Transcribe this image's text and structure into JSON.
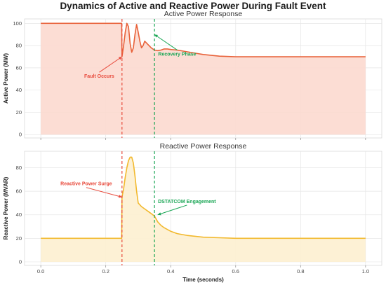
{
  "title": "Dynamics of Active and Reactive Power During Fault Event",
  "colors": {
    "active_line": "#e8623a",
    "active_fill": "#fcd9cf",
    "reactive_line": "#f2b92e",
    "reactive_fill": "#fdefd0",
    "fault_marker": "#e84a3c",
    "recovery_marker": "#1aa655",
    "grid": "#e6e6e6"
  },
  "chart_data": [
    {
      "type": "area",
      "title": "Active Power Response",
      "xlabel": "",
      "ylabel": "Active Power (MW)",
      "xlim": [
        -0.05,
        1.05
      ],
      "ylim": [
        -3,
        104
      ],
      "xticks": [
        0.0,
        0.2,
        0.4,
        0.6,
        0.8,
        1.0
      ],
      "yticks": [
        0,
        20,
        40,
        60,
        80,
        100
      ],
      "ytick_labels": [
        "0",
        "20",
        "40",
        "60",
        "80",
        "100"
      ],
      "grid": true,
      "series": [
        {
          "x": [
            0,
            0.05,
            0.1,
            0.15,
            0.2,
            0.249,
            0.25,
            0.255,
            0.26,
            0.265,
            0.27,
            0.275,
            0.28,
            0.285,
            0.29,
            0.295,
            0.3,
            0.305,
            0.31,
            0.315,
            0.32,
            0.33,
            0.34,
            0.35,
            0.36,
            0.37,
            0.38,
            0.39,
            0.4,
            0.42,
            0.45,
            0.48,
            0.5,
            0.55,
            0.6,
            0.65,
            0.7,
            0.8,
            0.9,
            1.0
          ],
          "y": [
            100,
            100,
            100,
            100,
            100,
            100,
            70,
            80,
            92,
            100,
            97,
            82,
            74,
            78,
            90,
            99,
            92,
            84,
            78,
            80,
            84,
            81,
            78,
            76,
            75.5,
            76,
            77,
            77,
            76.5,
            76,
            74.5,
            73,
            72,
            70.5,
            70,
            70,
            70,
            70,
            70,
            70
          ]
        }
      ],
      "vlines": [
        {
          "x": 0.25,
          "color": "#e84a3c"
        },
        {
          "x": 0.35,
          "color": "#1aa655"
        }
      ],
      "annotations": [
        {
          "text": "Fault Occurs",
          "color": "#e84a3c",
          "point": [
            0.25,
            70
          ],
          "text_at": [
            0.18,
            51
          ]
        },
        {
          "text": "Recovery Phase",
          "color": "#1aa655",
          "point": [
            0.35,
            90
          ],
          "text_at": [
            0.42,
            71
          ]
        }
      ]
    },
    {
      "type": "area",
      "title": "Reactive Power Response",
      "xlabel": "Time (seconds)",
      "ylabel": "Reactive Power (MVAR)",
      "xlim": [
        -0.05,
        1.05
      ],
      "ylim": [
        -3,
        94
      ],
      "xticks": [
        0.0,
        0.2,
        0.4,
        0.6,
        0.8,
        1.0
      ],
      "xtick_labels": [
        "0.0",
        "0.2",
        "0.4",
        "0.6",
        "0.8",
        "1.0"
      ],
      "yticks": [
        0,
        20,
        40,
        60,
        80
      ],
      "ytick_labels": [
        "0",
        "20",
        "40",
        "60",
        "80"
      ],
      "grid": true,
      "series": [
        {
          "x": [
            0,
            0.05,
            0.1,
            0.15,
            0.2,
            0.249,
            0.25,
            0.255,
            0.26,
            0.265,
            0.27,
            0.275,
            0.28,
            0.285,
            0.29,
            0.295,
            0.3,
            0.31,
            0.32,
            0.33,
            0.34,
            0.35,
            0.36,
            0.37,
            0.38,
            0.4,
            0.42,
            0.45,
            0.5,
            0.55,
            0.6,
            0.7,
            0.8,
            0.9,
            1.0
          ],
          "y": [
            20,
            20,
            20,
            20,
            20,
            20,
            55,
            62,
            72,
            80,
            86,
            89,
            89,
            84,
            73,
            60,
            50,
            47,
            45,
            43,
            41,
            39,
            34,
            31,
            29,
            26,
            24,
            22.5,
            21,
            20.5,
            20,
            20,
            20,
            20,
            20
          ]
        }
      ],
      "vlines": [
        {
          "x": 0.25,
          "color": "#e84a3c"
        },
        {
          "x": 0.35,
          "color": "#1aa655"
        }
      ],
      "annotations": [
        {
          "text": "Reactive Power Surge",
          "color": "#e84a3c",
          "point": [
            0.25,
            55
          ],
          "text_at": [
            0.14,
            65
          ]
        },
        {
          "text": "DSTATCOM Engagement",
          "color": "#1aa655",
          "point": [
            0.36,
            40
          ],
          "text_at": [
            0.45,
            50
          ]
        }
      ]
    }
  ]
}
